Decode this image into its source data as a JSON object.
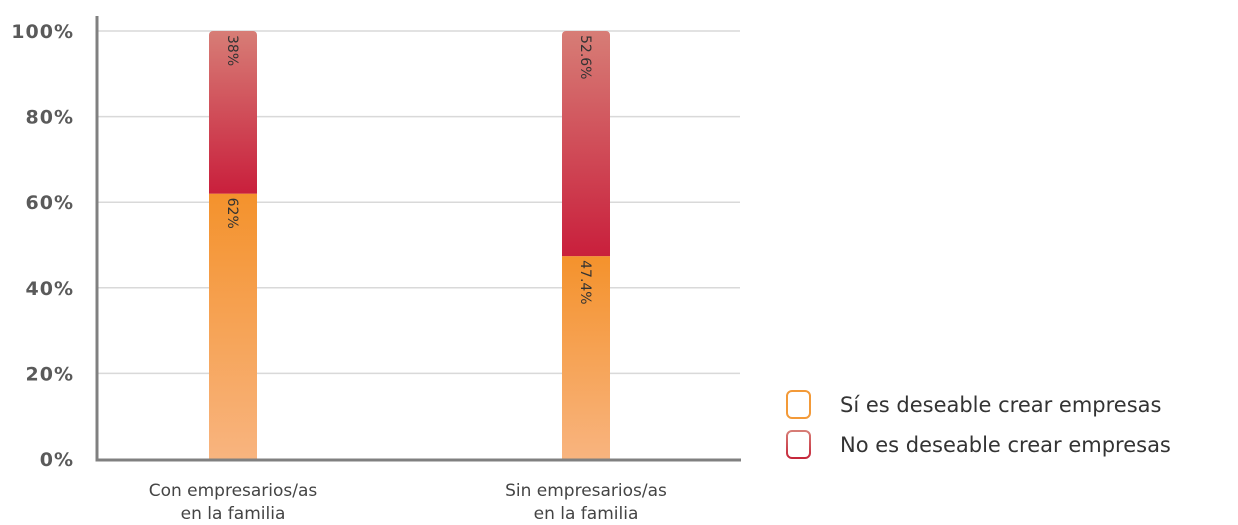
{
  "chart_data": {
    "type": "bar",
    "stacked": true,
    "categories": [
      [
        "Con empresarios/as",
        "en la familia"
      ],
      [
        "Sin empresarios/as",
        "en la familia"
      ]
    ],
    "series": [
      {
        "name": "Sí es deseable crear empresas",
        "values": [
          62,
          47.4
        ],
        "labels": [
          "62%",
          "47.4%"
        ],
        "color_top": "#f4922c",
        "color_bottom": "#f8b47f",
        "legend_border": "#f39a38"
      },
      {
        "name": "No es deseable crear empresas",
        "values": [
          38,
          52.6
        ],
        "labels": [
          "38%",
          "52.6%"
        ],
        "color_top": "#d77d76",
        "color_bottom": "#c91f3c",
        "legend_border": "#c6273b"
      }
    ],
    "y_ticks": [
      0,
      20,
      40,
      60,
      80,
      100
    ],
    "y_tick_labels": [
      "0%",
      "20%",
      "40%",
      "60%",
      "80%",
      "100%"
    ],
    "ylim": [
      0,
      100
    ],
    "grid": true,
    "legend_position": "bottom-right",
    "axis_color": "#808080",
    "grid_color": "#d9d9d9"
  }
}
